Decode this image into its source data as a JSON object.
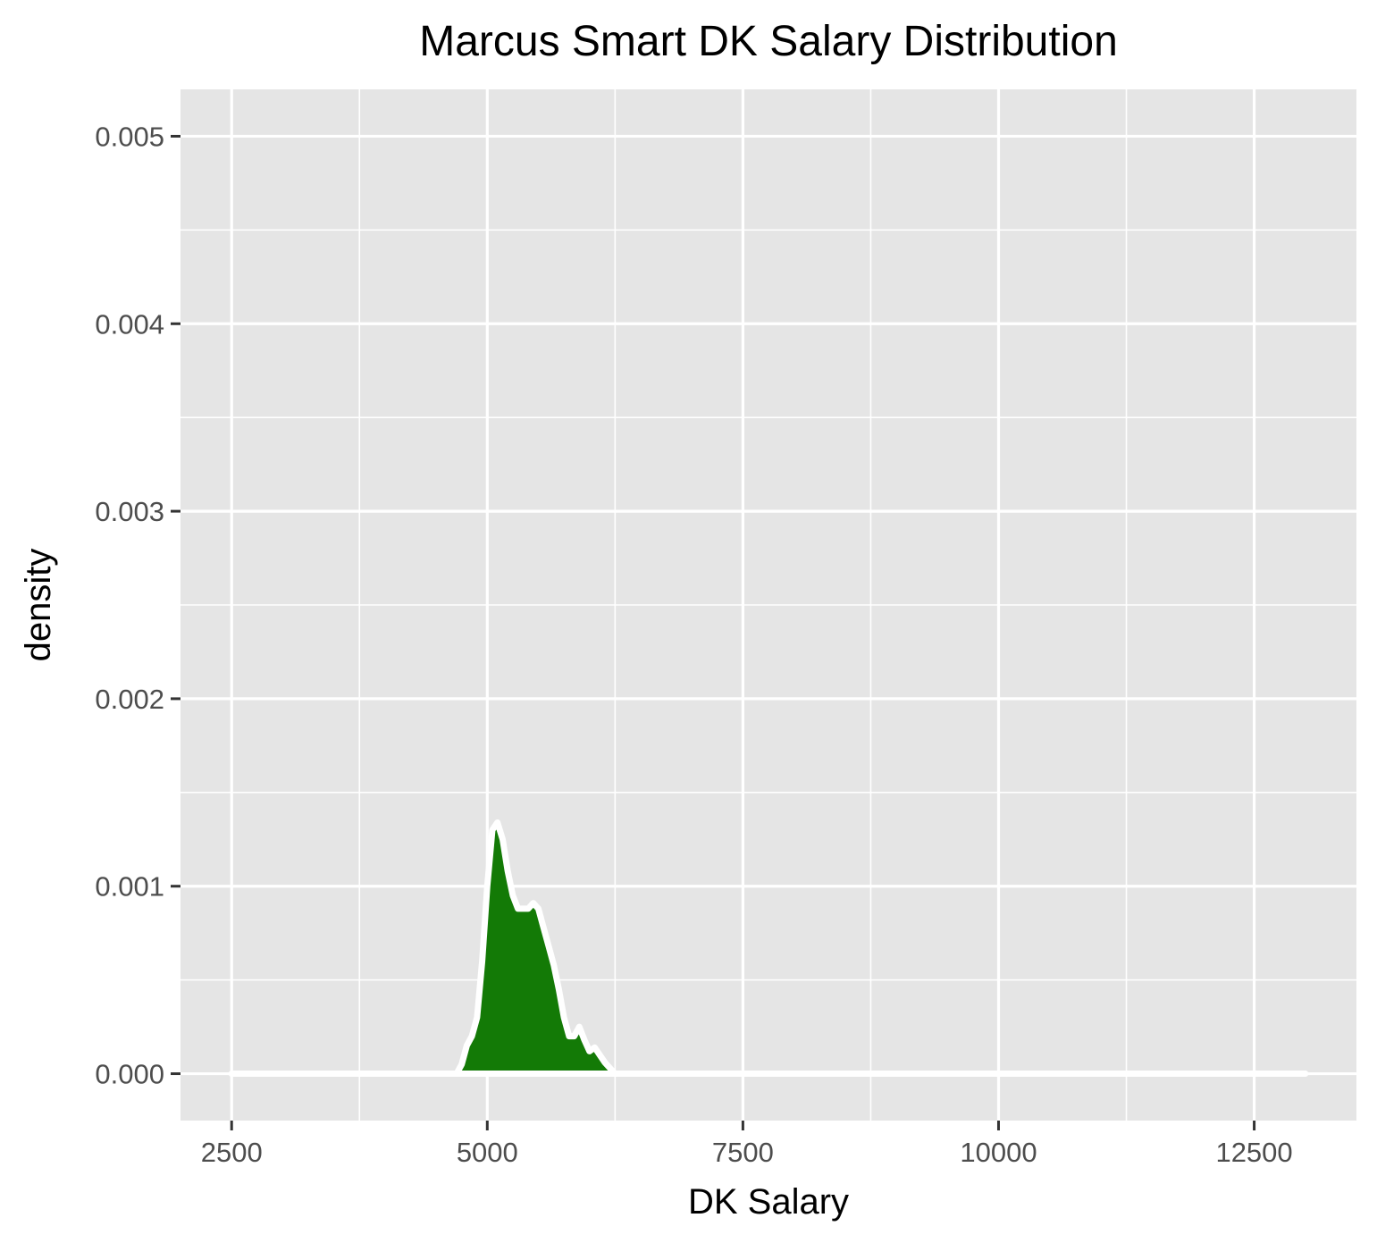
{
  "chart_data": {
    "type": "area",
    "title": "Marcus Smart DK Salary Distribution",
    "xlabel": "DK Salary",
    "ylabel": "density",
    "xlim": [
      2000,
      13500
    ],
    "ylim": [
      -0.00025,
      0.00525
    ],
    "x_ticks": [
      2500,
      5000,
      7500,
      10000,
      12500
    ],
    "x_tick_labels": [
      "2500",
      "5000",
      "7500",
      "10000",
      "12500"
    ],
    "y_ticks": [
      0,
      0.001,
      0.002,
      0.003,
      0.004,
      0.005
    ],
    "y_tick_labels": [
      "0.000",
      "0.001",
      "0.002",
      "0.003",
      "0.004",
      "0.005"
    ],
    "grid": true,
    "legend": "none",
    "colors": {
      "fill": "#137a06",
      "outline": "#ffffff",
      "panel": "#e5e5e5",
      "grid": "#ffffff",
      "tick_text": "#4d4d4d",
      "tick_mark": "#333333"
    },
    "series": [
      {
        "x": [
          2500,
          3500,
          4500,
          4700,
          4750,
          4800,
          4850,
          4900,
          4950,
          5000,
          5050,
          5100,
          5150,
          5200,
          5250,
          5300,
          5350,
          5400,
          5450,
          5500,
          5550,
          5600,
          5650,
          5700,
          5750,
          5800,
          5850,
          5900,
          5950,
          6000,
          6050,
          6100,
          6150,
          6200,
          6250,
          6300,
          6350,
          6400,
          6500,
          7000,
          8000,
          9000,
          10000,
          11000,
          12000,
          13000
        ],
        "y": [
          0,
          0,
          0,
          0,
          5e-05,
          0.00015,
          0.0002,
          0.0003,
          0.0006,
          0.001,
          0.0013,
          0.00134,
          0.00125,
          0.00108,
          0.00095,
          0.00088,
          0.00088,
          0.00088,
          0.00091,
          0.00088,
          0.00078,
          0.00068,
          0.00058,
          0.00045,
          0.0003,
          0.0002,
          0.0002,
          0.00025,
          0.00018,
          0.00012,
          0.00014,
          0.0001,
          6e-05,
          3e-05,
          0,
          0,
          0,
          0,
          0,
          0,
          0,
          0,
          0,
          0,
          0,
          0
        ]
      }
    ]
  }
}
